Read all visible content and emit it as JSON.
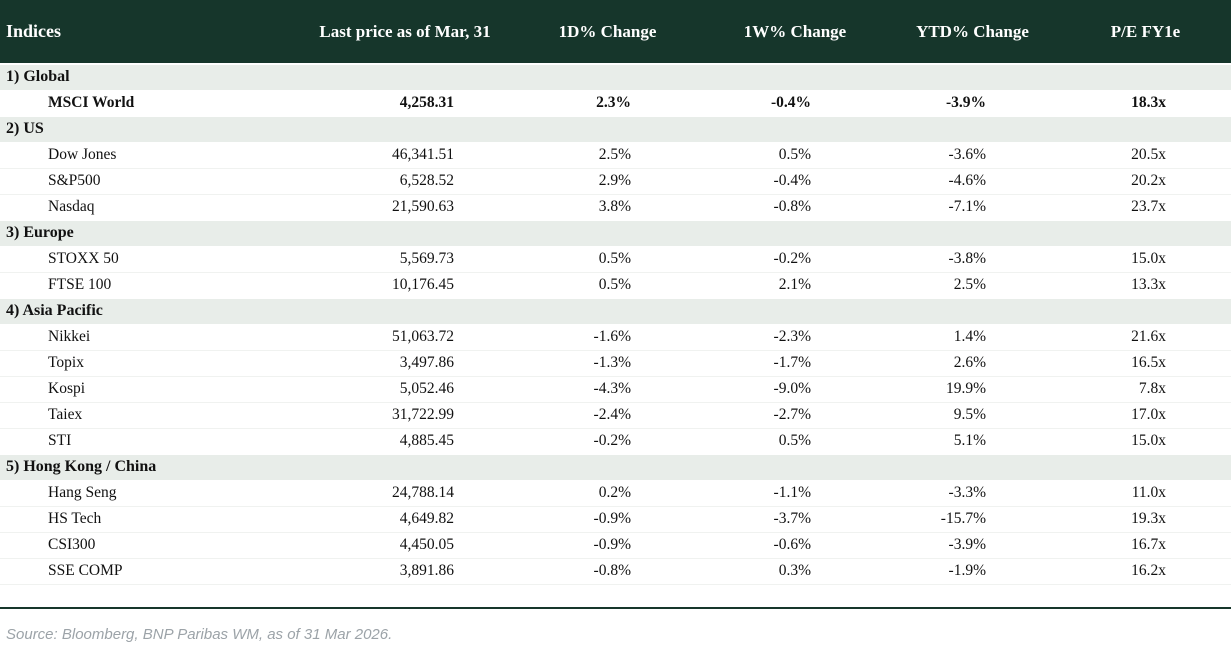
{
  "header": {
    "title": "Indices",
    "columns": [
      "Last price as of Mar, 31",
      "1D% Change",
      "1W% Change",
      "YTD% Change",
      "P/E FY1e"
    ]
  },
  "sections": [
    {
      "label": "1) Global",
      "rows": [
        {
          "name": "MSCI World",
          "emphasis": true,
          "values": [
            "4,258.31",
            "2.3%",
            "-0.4%",
            "-3.9%",
            "18.3x"
          ]
        }
      ]
    },
    {
      "label": "2) US",
      "rows": [
        {
          "name": "Dow Jones",
          "values": [
            "46,341.51",
            "2.5%",
            "0.5%",
            "-3.6%",
            "20.5x"
          ]
        },
        {
          "name": "S&P500",
          "values": [
            "6,528.52",
            "2.9%",
            "-0.4%",
            "-4.6%",
            "20.2x"
          ]
        },
        {
          "name": "Nasdaq",
          "values": [
            "21,590.63",
            "3.8%",
            "-0.8%",
            "-7.1%",
            "23.7x"
          ]
        }
      ]
    },
    {
      "label": "3) Europe",
      "rows": [
        {
          "name": "STOXX 50",
          "values": [
            "5,569.73",
            "0.5%",
            "-0.2%",
            "-3.8%",
            "15.0x"
          ]
        },
        {
          "name": "FTSE 100",
          "values": [
            "10,176.45",
            "0.5%",
            "2.1%",
            "2.5%",
            "13.3x"
          ]
        }
      ]
    },
    {
      "label": "4) Asia Pacific",
      "rows": [
        {
          "name": "Nikkei",
          "values": [
            "51,063.72",
            "-1.6%",
            "-2.3%",
            "1.4%",
            "21.6x"
          ]
        },
        {
          "name": "Topix",
          "values": [
            "3,497.86",
            "-1.3%",
            "-1.7%",
            "2.6%",
            "16.5x"
          ]
        },
        {
          "name": "Kospi",
          "values": [
            "5,052.46",
            "-4.3%",
            "-9.0%",
            "19.9%",
            "7.8x"
          ]
        },
        {
          "name": "Taiex",
          "values": [
            "31,722.99",
            "-2.4%",
            "-2.7%",
            "9.5%",
            "17.0x"
          ]
        },
        {
          "name": "STI",
          "values": [
            "4,885.45",
            "-0.2%",
            "0.5%",
            "5.1%",
            "15.0x"
          ]
        }
      ]
    },
    {
      "label": "5) Hong Kong / China",
      "rows": [
        {
          "name": "Hang Seng",
          "values": [
            "24,788.14",
            "0.2%",
            "-1.1%",
            "-3.3%",
            "11.0x"
          ]
        },
        {
          "name": "HS Tech",
          "values": [
            "4,649.82",
            "-0.9%",
            "-3.7%",
            "-15.7%",
            "19.3x"
          ]
        },
        {
          "name": "CSI300",
          "values": [
            "4,450.05",
            "-0.9%",
            "-0.6%",
            "-3.9%",
            "16.7x"
          ]
        },
        {
          "name": "SSE COMP",
          "values": [
            "3,891.86",
            "-0.8%",
            "0.3%",
            "-1.9%",
            "16.2x"
          ]
        }
      ]
    }
  ],
  "footer": {
    "source": "Source: Bloomberg, BNP Paribas WM, as of 31 Mar 2026."
  },
  "colors": {
    "header_bg": "#16362b",
    "section_bg": "#e8ede9",
    "positive": "#1f7d33",
    "negative": "#b32d2d"
  }
}
